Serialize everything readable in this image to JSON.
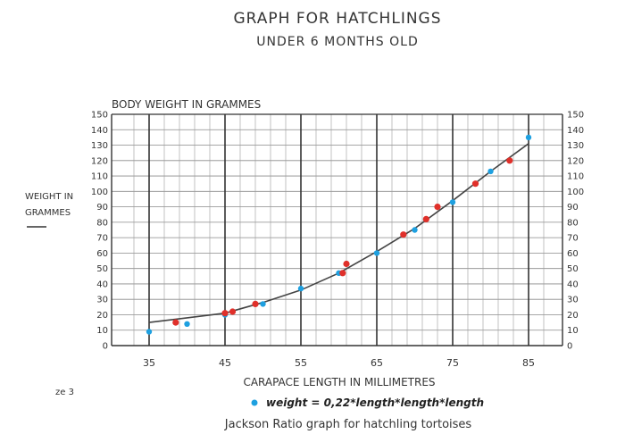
{
  "chart_data": {
    "type": "scatter",
    "title": "GRAPH FOR HATCHLINGS",
    "subtitle": "UNDER 6 MONTHS OLD",
    "ylabel": "BODY WEIGHT IN GRAMMES",
    "ylabel_side": [
      "WEIGHT IN",
      "GRAMMES"
    ],
    "xlabel": "CARAPACE LENGTH IN MILLIMETRES",
    "xlim": [
      35,
      85
    ],
    "ylim": [
      0,
      150
    ],
    "x_ticks": [
      35,
      45,
      55,
      65,
      75,
      85
    ],
    "y_ticks": [
      0,
      10,
      20,
      30,
      40,
      50,
      60,
      70,
      80,
      90,
      100,
      110,
      120,
      130,
      140,
      150
    ],
    "grid": true,
    "colors": {
      "computed": "#1ea0e0",
      "observed": "#e0302a",
      "curve": "#444444"
    },
    "curve": {
      "x": [
        35,
        40,
        45,
        50,
        55,
        60,
        65,
        70,
        75,
        80,
        85
      ],
      "y": [
        15,
        18,
        21,
        28,
        36,
        47,
        61,
        76,
        94,
        113,
        131
      ]
    },
    "series": [
      {
        "name": "weight = 0,22*length*length*length",
        "color": "#1ea0e0",
        "x": [
          35,
          40,
          45,
          50,
          55,
          60,
          65,
          70,
          75,
          80,
          85
        ],
        "y": [
          9,
          14,
          20,
          27,
          37,
          47,
          60,
          75,
          93,
          113,
          135
        ]
      },
      {
        "color": "#e0302a",
        "x": [
          38.5,
          45,
          46,
          49,
          60.5,
          61,
          68.5,
          71.5,
          73,
          78,
          82.5
        ],
        "y": [
          15,
          21,
          22,
          27,
          47,
          53,
          72,
          82,
          90,
          105,
          120
        ]
      }
    ]
  },
  "footer": {
    "figure_ref": "ze 3",
    "caption": "Jackson Ratio graph for hatchling tortoises"
  }
}
